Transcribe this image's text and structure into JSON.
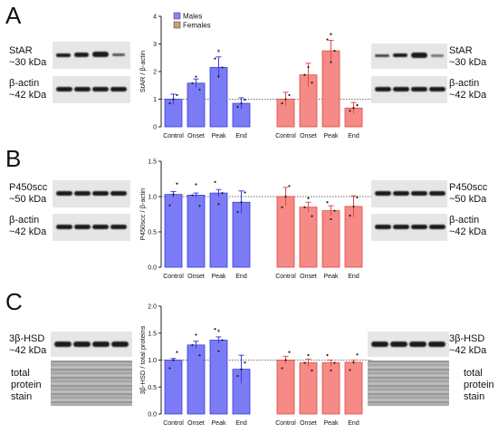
{
  "chart_data": [
    {
      "type": "bar",
      "panel": "A",
      "ylabel": "StAR / β-actin",
      "ylim": [
        0,
        4
      ],
      "yticks": [
        "0",
        "1",
        "2",
        "3",
        "4"
      ],
      "reference_line": 1,
      "legend": [
        "Males",
        "Females"
      ],
      "groups": [
        {
          "name": "Males",
          "categories": [
            "Control",
            "Onset",
            "Peak",
            "End"
          ],
          "values": [
            1.0,
            1.58,
            2.15,
            0.85
          ],
          "errors": [
            0.18,
            0.15,
            0.38,
            0.2
          ],
          "color": "#7b7bf5",
          "markers": [
            "",
            "",
            "*",
            ""
          ]
        },
        {
          "name": "Females",
          "categories": [
            "Control",
            "Onset",
            "Peak",
            "End"
          ],
          "values": [
            1.0,
            1.88,
            2.75,
            0.68
          ],
          "errors": [
            0.25,
            0.42,
            0.38,
            0.2
          ],
          "color": "#f58a86",
          "markers": [
            "",
            "",
            "*",
            ""
          ]
        }
      ]
    },
    {
      "type": "bar",
      "panel": "B",
      "ylabel": "P450scc / β-actin",
      "ylim": [
        0,
        1.5
      ],
      "yticks": [
        "0.0",
        "0.5",
        "1.0",
        "1.5"
      ],
      "reference_line": 1,
      "groups": [
        {
          "name": "Males",
          "categories": [
            "Control",
            "Onset",
            "Peak",
            "End"
          ],
          "values": [
            1.03,
            1.02,
            1.05,
            0.92
          ],
          "errors": [
            0.04,
            0.03,
            0.05,
            0.16
          ],
          "color": "#7b7bf5"
        },
        {
          "name": "Females",
          "categories": [
            "Control",
            "Onset",
            "Peak",
            "End"
          ],
          "values": [
            1.0,
            0.85,
            0.8,
            0.86
          ],
          "errors": [
            0.13,
            0.07,
            0.07,
            0.15
          ],
          "color": "#f58a86"
        }
      ]
    },
    {
      "type": "bar",
      "panel": "C",
      "ylabel": "3β-HSD / total proteins",
      "ylim": [
        0,
        2.0
      ],
      "yticks": [
        "0.0",
        "0.5",
        "1.0",
        "1.5",
        "2.0"
      ],
      "reference_line": 1,
      "groups": [
        {
          "name": "Males",
          "categories": [
            "Control",
            "Onset",
            "Peak",
            "End"
          ],
          "values": [
            1.0,
            1.28,
            1.37,
            0.83
          ],
          "errors": [
            0.03,
            0.07,
            0.06,
            0.26
          ],
          "color": "#7b7bf5",
          "markers": [
            "",
            "",
            "*",
            ""
          ]
        },
        {
          "name": "Females",
          "categories": [
            "Control",
            "Onset",
            "Peak",
            "End"
          ],
          "values": [
            1.0,
            0.95,
            0.95,
            0.96
          ],
          "errors": [
            0.07,
            0.07,
            0.05,
            0.04
          ],
          "color": "#f58a86"
        }
      ]
    }
  ],
  "panels": {
    "A": {
      "letter": "A",
      "left_top": "StAR",
      "left_top_kda": "~30 kDa",
      "left_bottom": "β-actin",
      "left_bottom_kda": "~42 kDa",
      "right_top": "StAR",
      "right_top_kda": "~30 kDa",
      "right_bottom": "β-actin",
      "right_bottom_kda": "~42 kDa"
    },
    "B": {
      "letter": "B",
      "left_top": "P450scc",
      "left_top_kda": "~50 kDa",
      "left_bottom": "β-actin",
      "left_bottom_kda": "~42 kDa",
      "right_top": "P450scc",
      "right_top_kda": "~50 kDa",
      "right_bottom": "β-actin",
      "right_bottom_kda": "~42 kDa"
    },
    "C": {
      "letter": "C",
      "left_top": "3β-HSD",
      "left_top_kda": "~42 kDa",
      "left_bottom_1": "total",
      "left_bottom_2": "protein",
      "left_bottom_3": "stain",
      "right_top": "3β-HSD",
      "right_top_kda": "~42 kDa",
      "right_bottom_1": "total",
      "right_bottom_2": "protein",
      "right_bottom_3": "stain"
    }
  }
}
